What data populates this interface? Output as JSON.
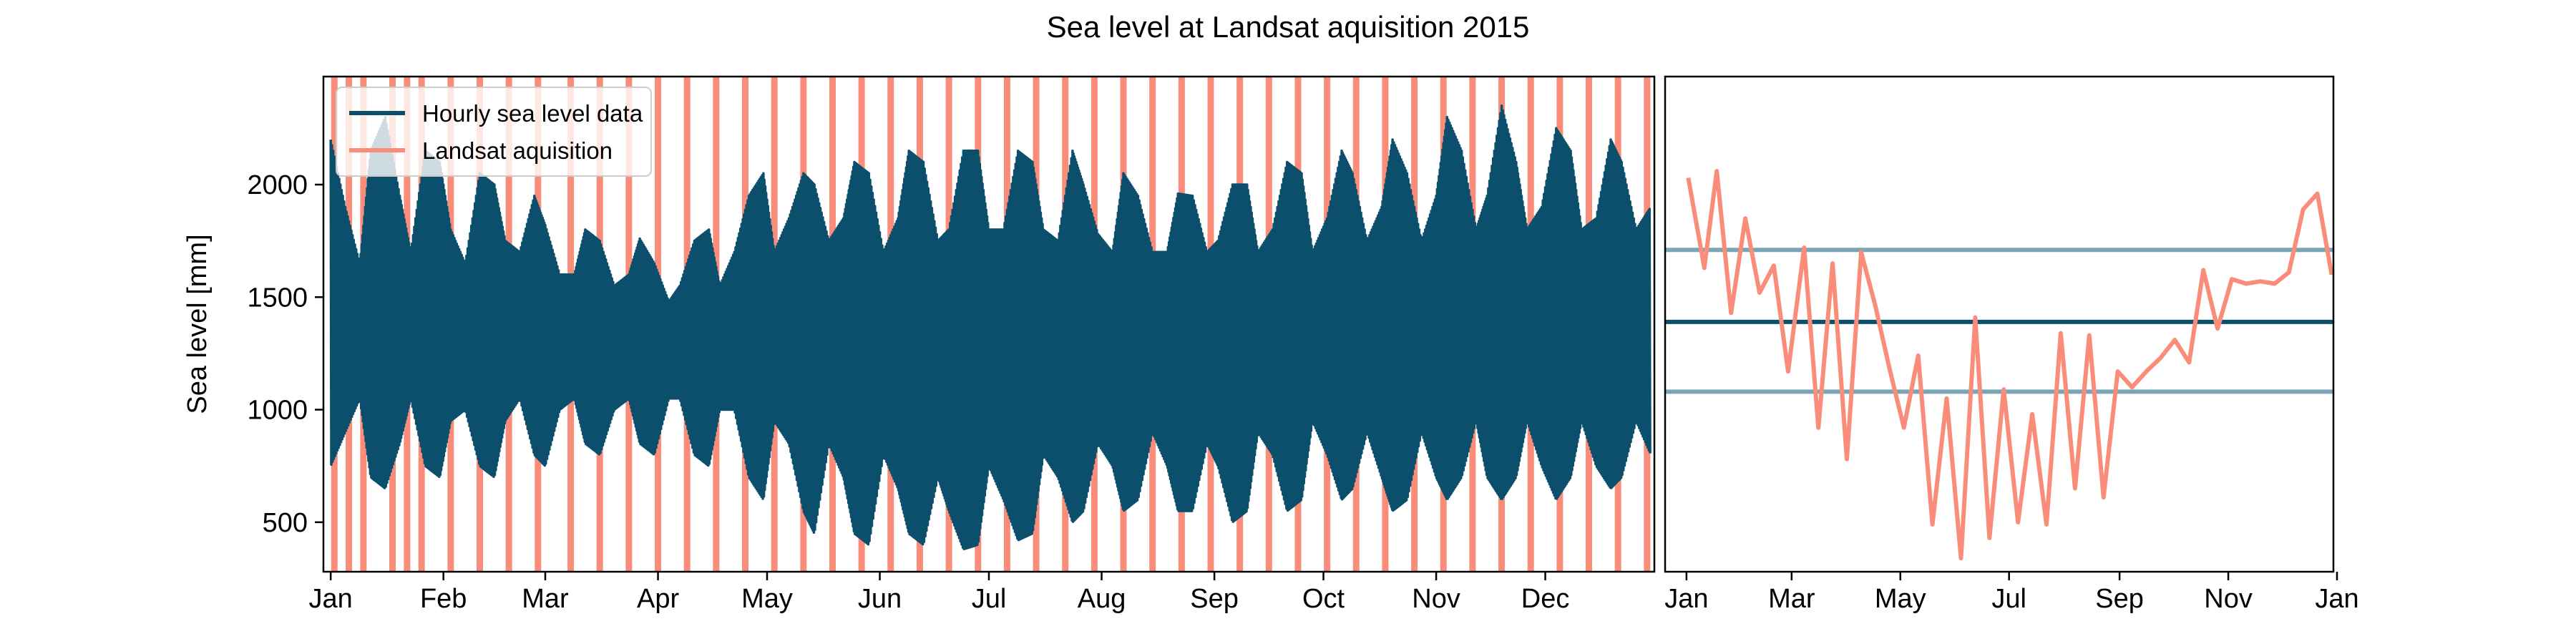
{
  "figure": {
    "title": "Sea level at Landsat aquisition 2015"
  },
  "colors": {
    "hourly": "#0b4f6c",
    "landsat": "#fa8c7a",
    "band": "#7aa5b6",
    "frame": "#000000"
  },
  "chart_data": [
    {
      "type": "area",
      "title": "Sea level at Landsat aquisition 2015",
      "xlabel": "",
      "ylabel": "Sea level [mm]",
      "xlim": [
        -2,
        364
      ],
      "ylim": [
        280,
        2480
      ],
      "yticks": [
        500,
        1000,
        1500,
        2000
      ],
      "xticks": [
        {
          "label": "Jan",
          "day": 0
        },
        {
          "label": "Feb",
          "day": 31
        },
        {
          "label": "Mar",
          "day": 59
        },
        {
          "label": "Apr",
          "day": 90
        },
        {
          "label": "May",
          "day": 120
        },
        {
          "label": "Jun",
          "day": 151
        },
        {
          "label": "Jul",
          "day": 181
        },
        {
          "label": "Aug",
          "day": 212
        },
        {
          "label": "Sep",
          "day": 243
        },
        {
          "label": "Oct",
          "day": 273
        },
        {
          "label": "Nov",
          "day": 304
        },
        {
          "label": "Dec",
          "day": 334
        }
      ],
      "grid": false,
      "legend": {
        "position": "top-left",
        "entries": [
          "Hourly sea level data",
          "Landsat aquisition"
        ]
      },
      "series": [
        {
          "name": "Hourly sea level data",
          "kind": "envelope",
          "x": [
            0,
            4,
            8,
            11,
            15,
            19,
            22,
            26,
            30,
            33,
            37,
            41,
            45,
            48,
            52,
            56,
            59,
            63,
            67,
            70,
            74,
            78,
            82,
            85,
            89,
            93,
            96,
            100,
            104,
            107,
            111,
            115,
            119,
            122,
            126,
            130,
            133,
            137,
            141,
            144,
            148,
            152,
            156,
            159,
            163,
            167,
            170,
            174,
            178,
            181,
            185,
            189,
            193,
            196,
            200,
            204,
            207,
            211,
            215,
            218,
            222,
            226,
            230,
            233,
            237,
            241,
            244,
            248,
            252,
            255,
            259,
            263,
            267,
            270,
            274,
            278,
            281,
            285,
            289,
            292,
            296,
            300,
            304,
            307,
            311,
            315,
            318,
            322,
            326,
            329,
            333,
            337,
            341,
            344,
            348,
            352,
            355,
            359,
            363
          ],
          "upper": [
            2200,
            1900,
            1650,
            2150,
            2300,
            1950,
            1700,
            2150,
            2100,
            1800,
            1650,
            2050,
            2000,
            1750,
            1700,
            1950,
            1820,
            1600,
            1600,
            1800,
            1750,
            1550,
            1600,
            1760,
            1650,
            1480,
            1550,
            1750,
            1800,
            1550,
            1700,
            1950,
            2050,
            1700,
            1850,
            2050,
            2000,
            1750,
            1850,
            2100,
            2050,
            1700,
            1850,
            2150,
            2100,
            1750,
            1800,
            2150,
            2150,
            1800,
            1800,
            2150,
            2100,
            1800,
            1750,
            2150,
            2000,
            1780,
            1700,
            2050,
            1950,
            1700,
            1700,
            1960,
            1950,
            1700,
            1750,
            2000,
            2000,
            1700,
            1800,
            2100,
            2050,
            1700,
            1850,
            2150,
            2050,
            1750,
            1900,
            2200,
            2050,
            1750,
            1950,
            2300,
            2150,
            1800,
            1950,
            2350,
            2100,
            1800,
            1900,
            2250,
            2150,
            1800,
            1850,
            2200,
            2100,
            1800,
            1900
          ],
          "lower": [
            750,
            900,
            1050,
            700,
            650,
            850,
            1050,
            750,
            700,
            950,
            1000,
            750,
            700,
            950,
            1050,
            800,
            750,
            1000,
            1050,
            850,
            800,
            1000,
            1050,
            850,
            800,
            1050,
            1050,
            800,
            750,
            1000,
            1000,
            700,
            600,
            950,
            850,
            550,
            450,
            850,
            700,
            450,
            400,
            800,
            650,
            450,
            400,
            700,
            550,
            380,
            400,
            750,
            600,
            420,
            450,
            800,
            700,
            500,
            550,
            850,
            750,
            550,
            600,
            900,
            750,
            550,
            550,
            850,
            750,
            500,
            550,
            900,
            800,
            550,
            600,
            950,
            800,
            600,
            650,
            900,
            700,
            550,
            600,
            900,
            700,
            600,
            700,
            950,
            700,
            600,
            700,
            950,
            750,
            600,
            700,
            950,
            750,
            650,
            700,
            950,
            800
          ]
        }
      ],
      "landsat_days": [
        1,
        5,
        9,
        17,
        21,
        25,
        33,
        41,
        49,
        57,
        66,
        74,
        82,
        90,
        98,
        106,
        114,
        122,
        130,
        138,
        146,
        154,
        162,
        170,
        178,
        186,
        194,
        202,
        210,
        218,
        226,
        234,
        242,
        250,
        258,
        266,
        274,
        282,
        290,
        298,
        306,
        314,
        322,
        330,
        338,
        346,
        354,
        362
      ]
    },
    {
      "type": "line",
      "xlabel": "",
      "ylabel": "",
      "xlim": [
        -12,
        363
      ],
      "ylim": [
        280,
        2480
      ],
      "xticks": [
        {
          "label": "Jan",
          "day": 0
        },
        {
          "label": "Mar",
          "day": 59
        },
        {
          "label": "May",
          "day": 120
        },
        {
          "label": "Jul",
          "day": 181
        },
        {
          "label": "Sep",
          "day": 243
        },
        {
          "label": "Nov",
          "day": 304
        },
        {
          "label": "Jan",
          "day": 365
        }
      ],
      "hlines": [
        {
          "role": "mean",
          "y": 1390
        },
        {
          "role": "mean_plus_std",
          "y": 1710
        },
        {
          "role": "mean_minus_std",
          "y": 1080
        }
      ],
      "series": [
        {
          "name": "Landsat aquisition",
          "x": [
            1,
            10,
            17,
            25,
            33,
            41,
            49,
            57,
            66,
            74,
            82,
            90,
            98,
            106,
            114,
            122,
            130,
            138,
            146,
            154,
            162,
            170,
            178,
            186,
            194,
            202,
            210,
            218,
            226,
            234,
            242,
            250,
            258,
            266,
            274,
            282,
            290,
            298,
            306,
            314,
            322,
            330,
            338,
            346,
            354,
            362
          ],
          "y": [
            2030,
            1630,
            2060,
            1430,
            1850,
            1520,
            1640,
            1170,
            1720,
            920,
            1650,
            780,
            1700,
            1460,
            1180,
            920,
            1240,
            490,
            1050,
            340,
            1410,
            430,
            1090,
            500,
            980,
            490,
            1340,
            650,
            1330,
            610,
            1170,
            1100,
            1170,
            1230,
            1310,
            1210,
            1620,
            1360,
            1580,
            1560,
            1570,
            1560,
            1610,
            1890,
            1960,
            1600
          ]
        }
      ]
    }
  ]
}
